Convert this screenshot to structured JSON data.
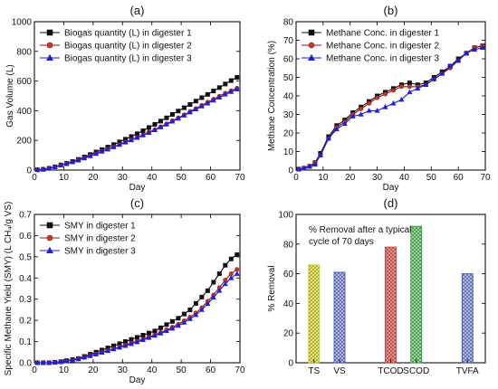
{
  "figure": {
    "colors": {
      "d1": "#111111",
      "d2": "#8b1a1a",
      "d3": "#1f1fd6",
      "d2_fill": "#c0392b",
      "ts": "#c8c832",
      "vs": "#3a4a9a",
      "tcod": "#c0392b",
      "scod": "#2e9e3a",
      "tvfa": "#3a4a9a"
    }
  },
  "chart_data": [
    {
      "id": "a",
      "type": "line",
      "title": "(a)",
      "xlabel": "Day",
      "ylabel": "Gas Volume (L)",
      "xlim": [
        0,
        70
      ],
      "ylim": [
        0,
        1000
      ],
      "xticks": [
        "0",
        "10",
        "20",
        "30",
        "40",
        "50",
        "60",
        "70"
      ],
      "yticks": [
        "0",
        "200",
        "400",
        "600",
        "800",
        "1000"
      ],
      "legend": "top-left",
      "x": [
        1,
        3,
        5,
        7,
        9,
        11,
        13,
        15,
        17,
        19,
        21,
        23,
        25,
        27,
        29,
        31,
        33,
        35,
        37,
        39,
        41,
        43,
        45,
        47,
        49,
        51,
        53,
        55,
        57,
        59,
        61,
        63,
        65,
        67,
        69
      ],
      "series": [
        {
          "name": "Biogas quantity (L) in digester 1",
          "marker": "square",
          "values": [
            2,
            5,
            12,
            22,
            35,
            45,
            58,
            72,
            88,
            105,
            122,
            138,
            155,
            172,
            190,
            208,
            226,
            245,
            265,
            287,
            308,
            330,
            352,
            375,
            398,
            420,
            442,
            465,
            488,
            510,
            533,
            556,
            580,
            603,
            625
          ]
        },
        {
          "name": "Biogas quantity (L) in digester 2",
          "marker": "circle",
          "values": [
            2,
            5,
            11,
            21,
            33,
            43,
            55,
            68,
            82,
            97,
            112,
            127,
            142,
            158,
            174,
            190,
            205,
            220,
            238,
            256,
            272,
            292,
            312,
            332,
            352,
            373,
            395,
            415,
            437,
            458,
            478,
            498,
            518,
            535,
            552
          ]
        },
        {
          "name": "Biogas quantity (L) in digester 3",
          "marker": "triangle",
          "values": [
            2,
            5,
            11,
            20,
            32,
            42,
            54,
            66,
            80,
            95,
            110,
            125,
            140,
            155,
            171,
            187,
            202,
            218,
            235,
            252,
            270,
            289,
            308,
            328,
            348,
            368,
            390,
            410,
            430,
            450,
            470,
            490,
            510,
            528,
            545
          ]
        }
      ]
    },
    {
      "id": "b",
      "type": "line",
      "title": "(b)",
      "xlabel": "Day",
      "ylabel": "Methane Concentration (%)",
      "xlim": [
        0,
        70
      ],
      "ylim": [
        0,
        80
      ],
      "xticks": [
        "0",
        "10",
        "20",
        "30",
        "40",
        "50",
        "60",
        "70"
      ],
      "yticks": [
        "0",
        "10",
        "20",
        "30",
        "40",
        "50",
        "60",
        "70",
        "80"
      ],
      "legend": "top-left",
      "x": [
        1,
        3,
        5,
        7,
        9,
        12,
        15,
        18,
        21,
        24,
        27,
        30,
        33,
        36,
        39,
        42,
        45,
        48,
        51,
        54,
        57,
        60,
        63,
        66,
        69
      ],
      "series": [
        {
          "name": "Methane Conc. in digester 1",
          "marker": "square",
          "values": [
            0.5,
            1,
            2,
            4,
            9,
            18,
            24,
            27,
            31,
            34,
            37,
            40,
            42,
            44,
            46,
            47,
            46,
            47,
            50,
            53,
            56,
            60,
            63,
            66,
            67
          ]
        },
        {
          "name": "Methane Conc. in digester 2",
          "marker": "circle",
          "values": [
            0.5,
            1,
            2,
            4,
            8,
            17,
            23,
            26,
            30,
            33,
            36,
            39,
            41,
            43,
            45,
            45,
            45,
            46,
            49,
            52,
            55,
            59,
            63,
            66,
            67
          ]
        },
        {
          "name": "Methane Conc. in digester 3",
          "marker": "triangle",
          "values": [
            0.5,
            1,
            2,
            3,
            8,
            17,
            22,
            25,
            29,
            30,
            32,
            32,
            34,
            36,
            38,
            42,
            44,
            46,
            49,
            52,
            56,
            59,
            63,
            65,
            66
          ]
        }
      ]
    },
    {
      "id": "c",
      "type": "line",
      "title": "(c)",
      "xlabel": "Day",
      "ylabel": "Specific Methane Yield (SMY) (L CH₄/g VS)",
      "xlim": [
        0,
        70
      ],
      "ylim": [
        0,
        0.7
      ],
      "xticks": [
        "0",
        "10",
        "20",
        "30",
        "40",
        "50",
        "60",
        "70"
      ],
      "yticks": [
        "0.0",
        "0.1",
        "0.2",
        "0.3",
        "0.4",
        "0.5",
        "0.6",
        "0.7"
      ],
      "legend": "top-left",
      "x": [
        1,
        3,
        5,
        7,
        9,
        11,
        13,
        15,
        17,
        19,
        21,
        23,
        25,
        27,
        29,
        31,
        33,
        35,
        37,
        39,
        41,
        43,
        45,
        47,
        49,
        51,
        53,
        55,
        57,
        59,
        61,
        63,
        65,
        67,
        69
      ],
      "series": [
        {
          "name": "SMY in digester 1",
          "marker": "square",
          "values": [
            0,
            0,
            0,
            0.002,
            0.005,
            0.01,
            0.015,
            0.02,
            0.03,
            0.04,
            0.05,
            0.06,
            0.07,
            0.08,
            0.09,
            0.1,
            0.11,
            0.12,
            0.13,
            0.14,
            0.15,
            0.165,
            0.18,
            0.195,
            0.21,
            0.23,
            0.25,
            0.28,
            0.31,
            0.34,
            0.38,
            0.42,
            0.46,
            0.49,
            0.51
          ]
        },
        {
          "name": "SMY in digester 2",
          "marker": "circle",
          "values": [
            0,
            0,
            0,
            0.002,
            0.004,
            0.008,
            0.012,
            0.018,
            0.026,
            0.034,
            0.042,
            0.05,
            0.058,
            0.066,
            0.075,
            0.084,
            0.093,
            0.102,
            0.112,
            0.122,
            0.132,
            0.143,
            0.155,
            0.168,
            0.182,
            0.198,
            0.215,
            0.235,
            0.26,
            0.29,
            0.32,
            0.355,
            0.39,
            0.42,
            0.44
          ]
        },
        {
          "name": "SMY in digester 3",
          "marker": "triangle",
          "values": [
            0,
            0,
            0,
            0.002,
            0.004,
            0.008,
            0.012,
            0.017,
            0.025,
            0.032,
            0.04,
            0.048,
            0.056,
            0.064,
            0.072,
            0.08,
            0.089,
            0.098,
            0.108,
            0.118,
            0.128,
            0.139,
            0.15,
            0.162,
            0.175,
            0.19,
            0.207,
            0.226,
            0.25,
            0.278,
            0.308,
            0.34,
            0.372,
            0.4,
            0.42
          ]
        }
      ]
    },
    {
      "id": "d",
      "type": "bar",
      "title": "(d)",
      "ylabel": "% Removal",
      "annotation": [
        "% Removal after a typical",
        "cycle of 70 days"
      ],
      "ylim": [
        0,
        100
      ],
      "yticks": [
        "0",
        "20",
        "40",
        "60",
        "80",
        "100"
      ],
      "categories": [
        "TS",
        "VS",
        "TCOD",
        "SCOD",
        "TVFA"
      ],
      "category_positions": [
        1,
        2,
        4,
        5,
        7
      ],
      "xlim": [
        0.3,
        7.7
      ],
      "values": [
        66,
        61,
        78,
        92,
        60
      ]
    }
  ]
}
